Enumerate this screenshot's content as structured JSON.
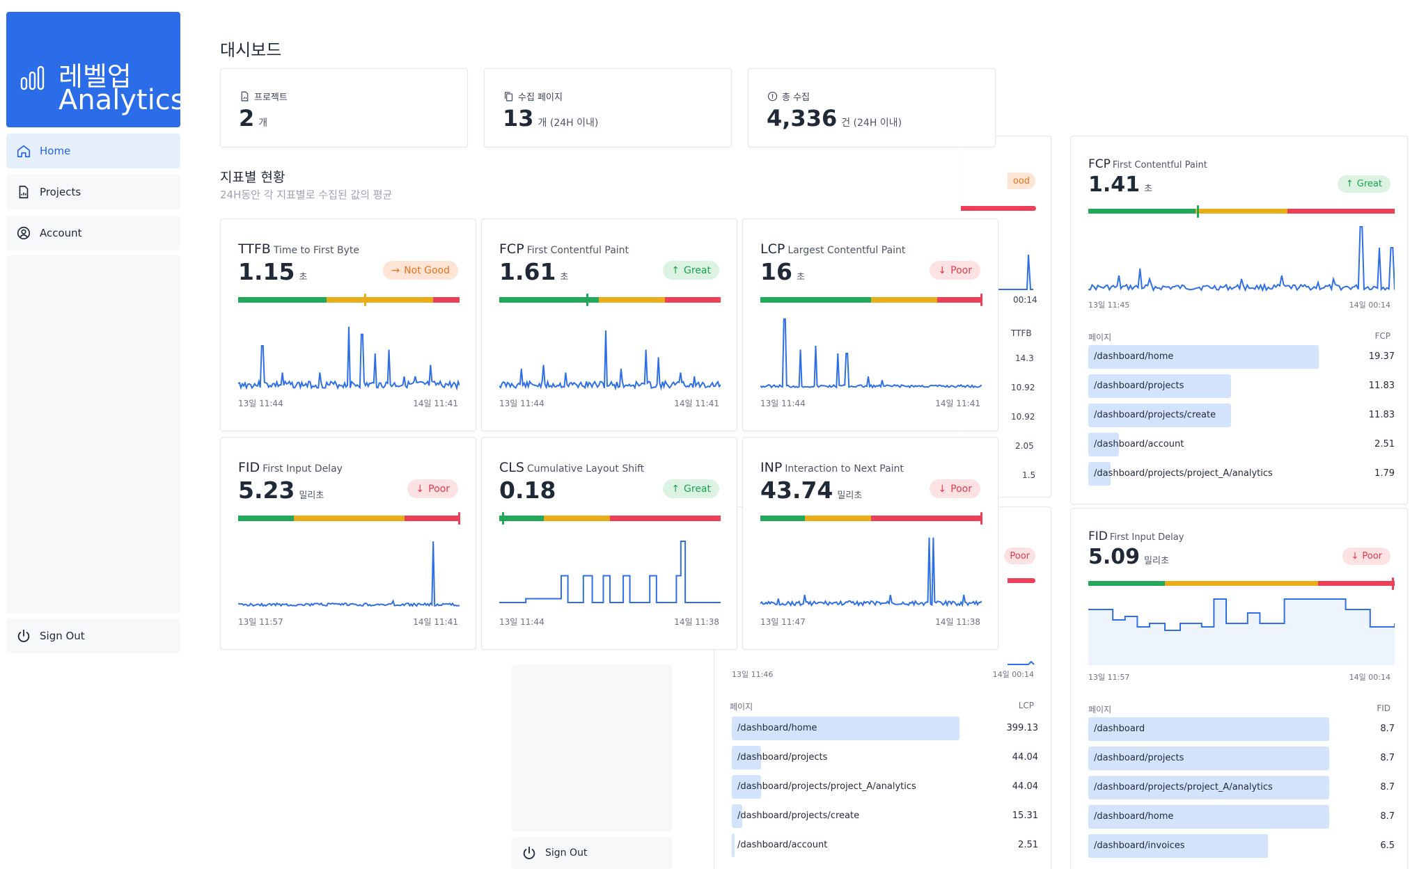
{
  "brand": {
    "line1": "레벨업",
    "line2": "Analytics"
  },
  "nav": {
    "home": "Home",
    "projects": "Projects",
    "account": "Account",
    "signout": "Sign Out"
  },
  "page_title": "대시보드",
  "stats": {
    "projects": {
      "label": "프로젝트",
      "value": "2",
      "unit": "개"
    },
    "pages": {
      "label": "수집 페이지",
      "value": "13",
      "unit": "개 (24H 이내)"
    },
    "total": {
      "label": "총 수집",
      "value": "4,336",
      "unit": "건 (24H 이내)"
    }
  },
  "section": {
    "title": "지표별 현황",
    "subtitle": "24H동안 각 지표별로 수집된 값의 평균"
  },
  "metrics": {
    "ttfb": {
      "abbr": "TTFB",
      "name": "Time to First Byte",
      "value": "1.15",
      "unit": "초",
      "badge": "Not Good",
      "from": "13일 11:44",
      "to": "14일 11:41",
      "marker": 0.575,
      "segments": [
        0.4,
        0.48,
        0.12
      ]
    },
    "fcp": {
      "abbr": "FCP",
      "name": "First Contentful Paint",
      "value": "1.61",
      "unit": "초",
      "badge": "Great",
      "from": "13일 11:44",
      "to": "14일 11:41",
      "marker": 0.4,
      "segments": [
        0.45,
        0.3,
        0.25
      ]
    },
    "lcp": {
      "abbr": "LCP",
      "name": "Largest Contentful Paint",
      "value": "16",
      "unit": "초",
      "badge": "Poor",
      "from": "13일 11:44",
      "to": "14일 11:41",
      "marker": 1.0,
      "segments": [
        0.5,
        0.3,
        0.2
      ]
    },
    "fid": {
      "abbr": "FID",
      "name": "First Input Delay",
      "value": "5.23",
      "unit": "밀리초",
      "badge": "Poor",
      "from": "13일 11:57",
      "to": "14일 11:41",
      "marker": 1.0,
      "segments": [
        0.25,
        0.5,
        0.25
      ]
    },
    "cls": {
      "abbr": "CLS",
      "name": "Cumulative Layout Shift",
      "value": "0.18",
      "unit": "",
      "badge": "Great",
      "from": "13일 11:44",
      "to": "14일 11:38",
      "marker": 0.02,
      "segments": [
        0.2,
        0.3,
        0.5
      ]
    },
    "inp": {
      "abbr": "INP",
      "name": "Interaction to Next Paint",
      "value": "43.74",
      "unit": "밀리초",
      "badge": "Poor",
      "from": "13일 11:47",
      "to": "14일 11:38",
      "marker": 1.0,
      "segments": [
        0.2,
        0.3,
        0.5
      ]
    }
  },
  "right_fcp": {
    "abbr": "FCP",
    "name": "First Contentful Paint",
    "value": "1.41",
    "unit": "초",
    "badge": "Great",
    "from": "13일 11:45",
    "to": "14일 00:14",
    "col_page": "페이지",
    "col_metric": "FCP",
    "marker": 0.355,
    "rows": [
      {
        "path": "/dashboard/home",
        "value": "19.37",
        "ratio": 0.87
      },
      {
        "path": "/dashboard/projects",
        "value": "11.83",
        "ratio": 0.54
      },
      {
        "path": "/dashboard/projects/create",
        "value": "11.83",
        "ratio": 0.54
      },
      {
        "path": "/dashboard/account",
        "value": "2.51",
        "ratio": 0.115
      },
      {
        "path": "/dashboard/projects/project_A/analytics",
        "value": "1.79",
        "ratio": 0.085
      }
    ]
  },
  "right_fid": {
    "abbr": "FID",
    "name": "First Input Delay",
    "value": "5.09",
    "unit": "밀리초",
    "badge": "Poor",
    "from": "13일 11:57",
    "to": "14일 00:14",
    "col_page": "페이지",
    "col_metric": "FID",
    "marker": 1.0,
    "rows": [
      {
        "path": "/dashboard",
        "value": "8.7",
        "ratio": 0.91
      },
      {
        "path": "/dashboard/projects",
        "value": "8.7",
        "ratio": 0.91
      },
      {
        "path": "/dashboard/projects/project_A/analytics",
        "value": "8.7",
        "ratio": 0.91
      },
      {
        "path": "/dashboard/home",
        "value": "8.7",
        "ratio": 0.91
      },
      {
        "path": "/dashboard/invoices",
        "value": "6.5",
        "ratio": 0.68
      }
    ]
  },
  "middle_lcp": {
    "from": "13일 11:46",
    "to": "14일 00:14",
    "col_page": "페이지",
    "col_metric": "LCP",
    "rows": [
      {
        "path": "/dashboard/home",
        "value": "399.13",
        "ratio": 0.86
      },
      {
        "path": "/dashboard/projects",
        "value": "44.04",
        "ratio": 0.11
      },
      {
        "path": "/dashboard/projects/project_A/analytics",
        "value": "44.04",
        "ratio": 0.11
      },
      {
        "path": "/dashboard/projects/create",
        "value": "15.31",
        "ratio": 0.04
      },
      {
        "path": "/dashboard/account",
        "value": "2.51",
        "ratio": 0.01
      }
    ]
  },
  "fragments": {
    "badge_ood": "ood",
    "badge_poor": "Poor",
    "ttfb_col": "TTFB",
    "time_to": "00:14",
    "ttfb_vals": [
      "14.3",
      "10.92",
      "10.92",
      "2.05",
      "1.5"
    ]
  },
  "colors": {
    "accent": "#2b6de8",
    "green": "#22a85a",
    "yellow": "#e8ad18",
    "red": "#ee3f58",
    "line": "#2f6fe6"
  }
}
